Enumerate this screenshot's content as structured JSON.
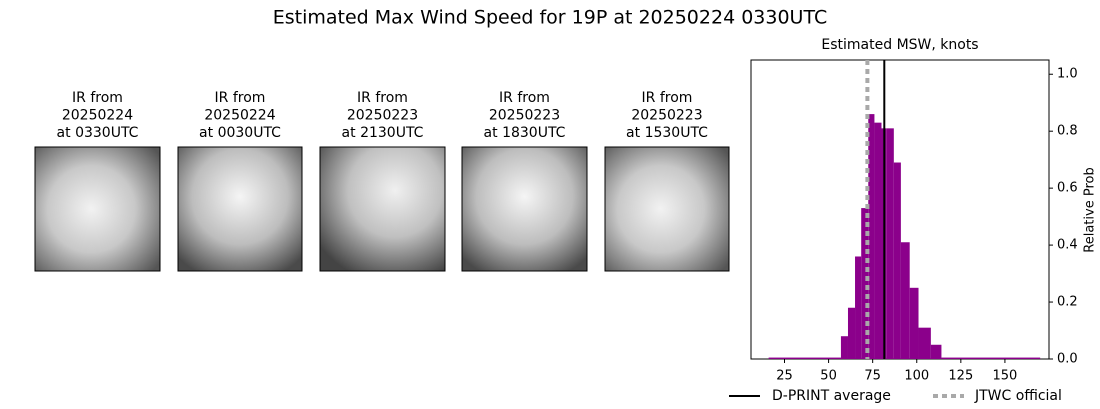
{
  "title": "Estimated Max Wind Speed for 19P at 20250224 0330UTC",
  "panels": [
    {
      "lines": [
        "IR from",
        "20250224",
        "at 0330UTC"
      ]
    },
    {
      "lines": [
        "IR from",
        "20250224",
        "at 0030UTC"
      ]
    },
    {
      "lines": [
        "IR from",
        "20250223",
        "at 2130UTC"
      ]
    },
    {
      "lines": [
        "IR from",
        "20250223",
        "at 1830UTC"
      ]
    },
    {
      "lines": [
        "IR from",
        "20250223",
        "at 1530UTC"
      ]
    }
  ],
  "chart_data": {
    "type": "histogram",
    "title": "Estimated MSW, knots",
    "ylabel": "Relative Prob",
    "bins": [
      16,
      57,
      61,
      65,
      68.5,
      72.5,
      76,
      80,
      83,
      87,
      91,
      96,
      101,
      108,
      114,
      170
    ],
    "counts": [
      0.005,
      0.08,
      0.18,
      0.36,
      0.53,
      0.86,
      0.83,
      0.81,
      0.81,
      0.69,
      0.41,
      0.25,
      0.11,
      0.05,
      0.005
    ],
    "color": "#8b008b",
    "xlim": [
      6,
      175
    ],
    "xticks": [
      25,
      50,
      75,
      100,
      125,
      150
    ],
    "ylim": [
      0,
      1.05
    ],
    "yticks": [
      {
        "value": 0,
        "label": "0.0"
      },
      {
        "value": 0.2,
        "label": "0.2"
      },
      {
        "value": 0.4,
        "label": "0.4"
      },
      {
        "value": 0.6,
        "label": "0.6"
      },
      {
        "value": 0.8,
        "label": "0.8"
      },
      {
        "value": 1,
        "label": "1.0"
      }
    ],
    "lines": [
      {
        "name": "D-PRINT average",
        "value": 81.6,
        "color": "#000000",
        "dashed": false
      },
      {
        "name": "JTWC official",
        "value": 72,
        "color": "#a9a9a9",
        "dashed": true
      }
    ],
    "legend": "bottom"
  }
}
